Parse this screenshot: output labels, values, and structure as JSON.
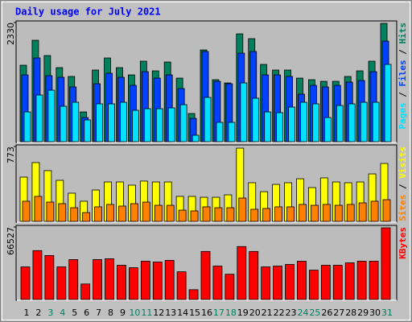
{
  "chart_data": {
    "type": "bar",
    "title": "Daily usage for July 2021",
    "legend_separator": " / ",
    "categories": [
      "1",
      "2",
      "3",
      "4",
      "5",
      "6",
      "7",
      "8",
      "9",
      "10",
      "11",
      "12",
      "13",
      "14",
      "15",
      "16",
      "17",
      "18",
      "19",
      "20",
      "21",
      "22",
      "23",
      "24",
      "25",
      "26",
      "27",
      "28",
      "29",
      "30",
      "31"
    ],
    "category_colors": [
      "#000000",
      "#000000",
      "#00805c",
      "#00805c",
      "#000000",
      "#000000",
      "#000000",
      "#000000",
      "#000000",
      "#00805c",
      "#00805c",
      "#000000",
      "#000000",
      "#000000",
      "#000000",
      "#000000",
      "#00805c",
      "#00805c",
      "#000000",
      "#000000",
      "#000000",
      "#000000",
      "#000000",
      "#00805c",
      "#00805c",
      "#000000",
      "#000000",
      "#000000",
      "#000000",
      "#000000",
      "#00805c"
    ],
    "panels": [
      {
        "ylim": [
          0,
          2330
        ],
        "yticks": [
          2330
        ],
        "series": [
          {
            "name": "Hits",
            "color": "#00805c",
            "values": [
              1495,
              1983,
              1684,
              1448,
              1275,
              582,
              1401,
              1637,
              1448,
              1306,
              1574,
              1385,
              1558,
              1243,
              551,
              1794,
              1212,
              1149,
              2109,
              2015,
              1511,
              1401,
              1401,
              1243,
              1212,
              1180,
              1180,
              1275,
              1385,
              1574,
              2314
            ]
          },
          {
            "name": "Files",
            "color": "#0040ff",
            "values": [
              1306,
              1637,
              1291,
              1259,
              1070,
              472,
              1133,
              1338,
              1259,
              1102,
              1369,
              1243,
              1306,
              1039,
              456,
              1763,
              1180,
              1133,
              1731,
              1763,
              1306,
              1306,
              1275,
              929,
              1102,
              1070,
              1102,
              1165,
              1196,
              1369,
              1967
            ]
          },
          {
            "name": "Pages",
            "color": "#00e0ff",
            "values": [
              582,
              913,
              1007,
              693,
              771,
              425,
              740,
              740,
              771,
              614,
              645,
              645,
              661,
              724,
              126,
              866,
              378,
              378,
              1149,
              850,
              582,
              567,
              677,
              771,
              740,
              472,
              708,
              740,
              771,
              771,
              1511
            ]
          }
        ]
      },
      {
        "ylim": [
          0,
          773
        ],
        "yticks": [
          773
        ],
        "series": [
          {
            "name": "Visits",
            "color": "#ffff00",
            "values": [
              457,
              607,
              524,
              424,
              291,
              208,
              324,
              407,
              407,
              374,
              416,
              407,
              407,
              258,
              258,
              249,
              249,
              274,
              756,
              399,
              307,
              382,
              399,
              440,
              349,
              449,
              407,
              399,
              407,
              490,
              598
            ]
          },
          {
            "name": "Sites",
            "color": "#ff8000",
            "values": [
              208,
              258,
              199,
              183,
              141,
              91,
              150,
              175,
              158,
              183,
              199,
              166,
              166,
              116,
              108,
              150,
              141,
              141,
              241,
              125,
              133,
              150,
              150,
              175,
              166,
              175,
              166,
              175,
              191,
              208,
              224
            ]
          }
        ]
      },
      {
        "ylim": [
          0,
          66527
        ],
        "yticks": [
          66527
        ],
        "series": [
          {
            "name": "KBytes",
            "color": "#ff0000",
            "values": [
              29900,
              44850,
              40365,
              29900,
              36628,
              14203,
              36628,
              37375,
              31395,
              29153,
              35133,
              34385,
              35880,
              25415,
              8970,
              44103,
              30648,
              23173,
              48588,
              44103,
              29900,
              30648,
              32143,
              35133,
              26910,
              31395,
              31395,
              33638,
              35133,
              35133,
              65780
            ]
          }
        ]
      }
    ]
  }
}
